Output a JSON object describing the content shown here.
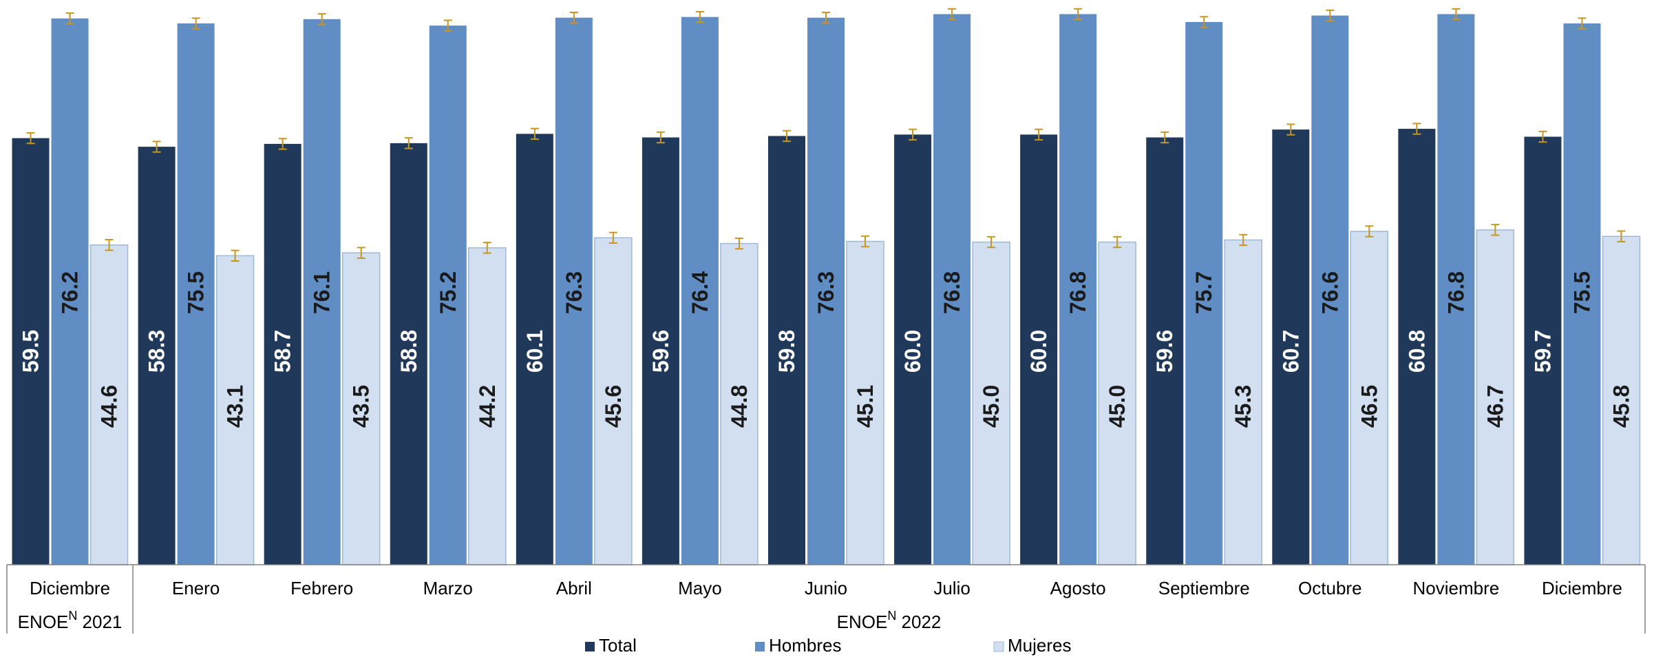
{
  "chart_data": {
    "type": "bar",
    "categories": [
      "Diciembre",
      "Enero",
      "Febrero",
      "Marzo",
      "Abril",
      "Mayo",
      "Junio",
      "Julio",
      "Agosto",
      "Septiembre",
      "Octubre",
      "Noviembre",
      "Diciembre"
    ],
    "groups": [
      {
        "label": "ENOE",
        "sup": "N",
        "year": "2021",
        "span": [
          0,
          0
        ]
      },
      {
        "label": "ENOE",
        "sup": "N",
        "year": "2022",
        "span": [
          1,
          12
        ]
      }
    ],
    "series": [
      {
        "name": "Total",
        "color": "#203859",
        "label_color": "#ffffff",
        "values": [
          59.5,
          58.3,
          58.7,
          58.8,
          60.1,
          59.6,
          59.8,
          60.0,
          60.0,
          59.6,
          60.7,
          60.8,
          59.7
        ]
      },
      {
        "name": "Hombres",
        "color": "#5f8dc4",
        "label_color": "#1a1a1a",
        "values": [
          76.2,
          75.5,
          76.1,
          75.2,
          76.3,
          76.4,
          76.3,
          76.8,
          76.8,
          75.7,
          76.6,
          76.8,
          75.5
        ]
      },
      {
        "name": "Mujeres",
        "color": "#d1dff0",
        "label_color": "#1a1a1a",
        "values": [
          44.6,
          43.1,
          43.5,
          44.2,
          45.6,
          44.8,
          45.1,
          45.0,
          45.0,
          45.3,
          46.5,
          46.7,
          45.8
        ]
      }
    ],
    "error_bar_color": "#c8961e",
    "ylim": [
      0,
      78
    ],
    "legend_position": "bottom",
    "grid": false
  }
}
